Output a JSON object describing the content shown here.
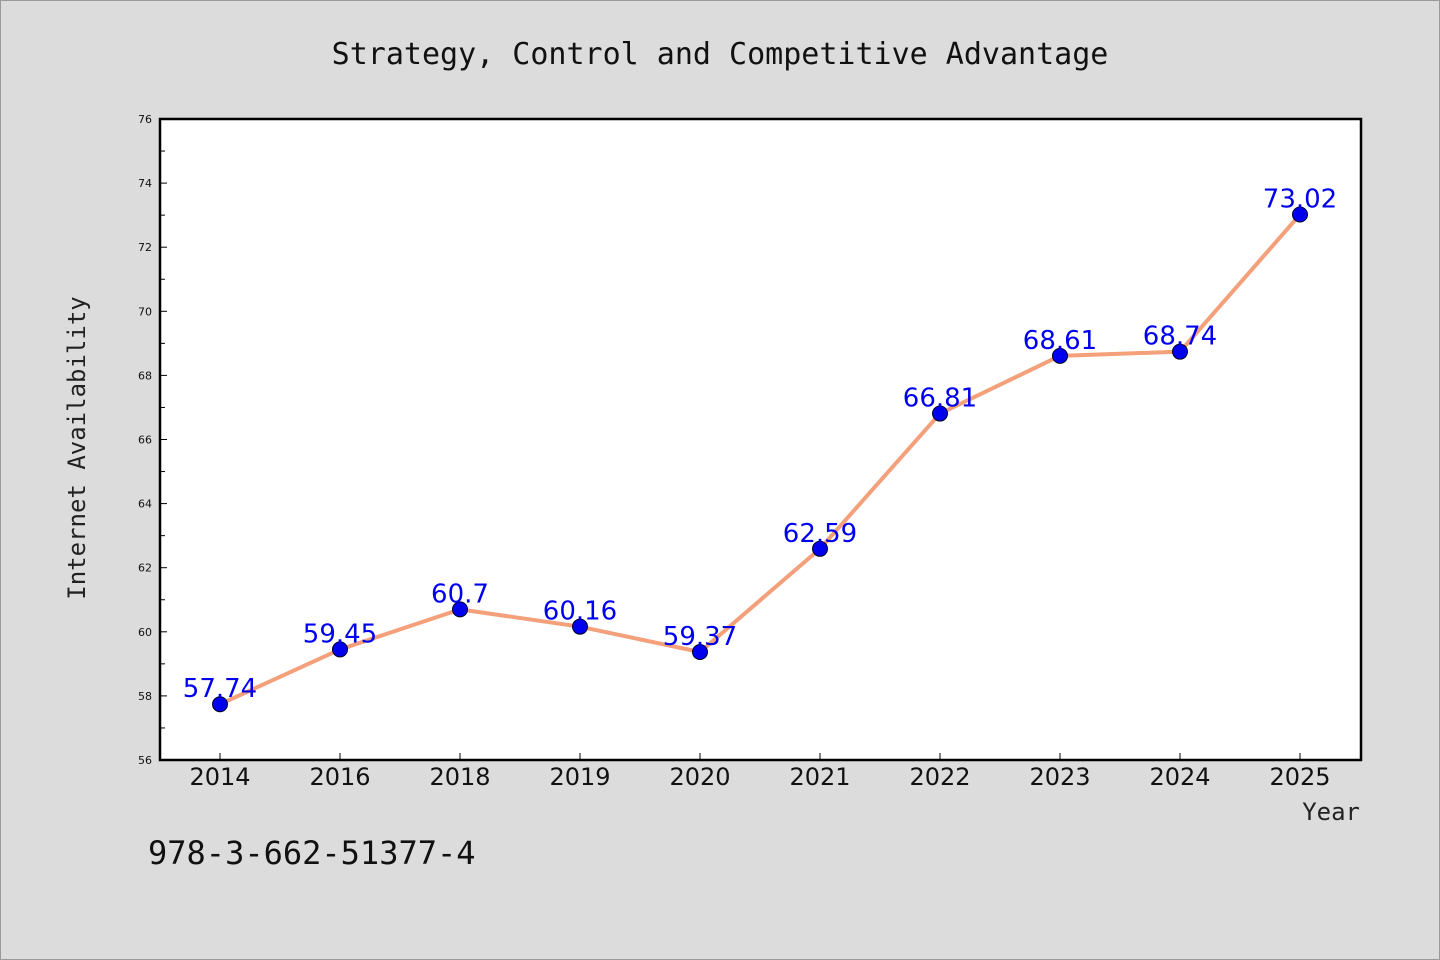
{
  "chart_data": {
    "type": "line",
    "title": "Strategy, Control and Competitive Advantage",
    "xlabel": "Year",
    "ylabel": "Internet Availability",
    "categories": [
      "2014",
      "2016",
      "2018",
      "2019",
      "2020",
      "2021",
      "2022",
      "2023",
      "2024",
      "2025"
    ],
    "values": [
      57.74,
      59.45,
      60.7,
      60.16,
      59.37,
      62.59,
      66.81,
      68.61,
      68.74,
      73.02
    ],
    "data_labels": [
      "57.74",
      "59.45",
      "60.7",
      "60.16",
      "59.37",
      "62.59",
      "66.81",
      "68.61",
      "68.74",
      "73.02"
    ],
    "ylim": [
      56,
      76
    ],
    "yticks": [
      56,
      58,
      60,
      62,
      64,
      66,
      68,
      70,
      72,
      74,
      76
    ],
    "grid": false,
    "legend": "none",
    "line_color": "#f4a07a",
    "marker_color": "#0000ee",
    "label_color": "#0000ee"
  },
  "footer": {
    "isbn": "978-3-662-51377-4"
  }
}
